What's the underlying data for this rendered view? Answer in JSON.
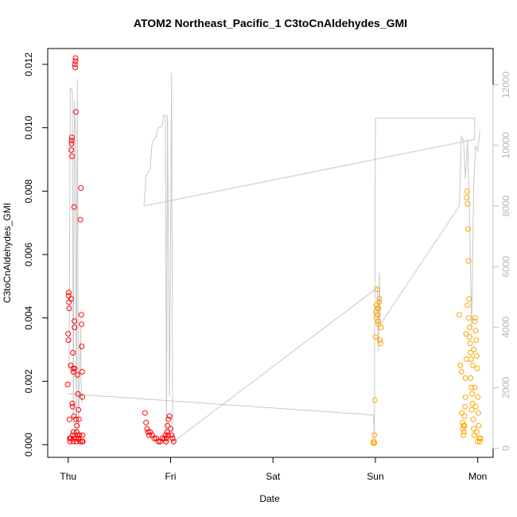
{
  "chart_data": {
    "type": "scatter",
    "title": "ATOM2 Northeast_Pacific_1 C3toCnAldehydes_GMI",
    "xlabel": "Date",
    "ylabel": "C3toCnAldehydes_GMI",
    "x_ticks": [
      "Thu",
      "Fri",
      "Sat",
      "Sun",
      "Mon"
    ],
    "x_range_days": [
      -0.2,
      4.15
    ],
    "y_ticks": [
      "0.000",
      "0.002",
      "0.004",
      "0.006",
      "0.008",
      "0.010",
      "0.012"
    ],
    "ylim": [
      -0.0004,
      0.0125
    ],
    "y2_ticks": [
      "0",
      "2000",
      "4000",
      "6000",
      "8000",
      "10000",
      "12000"
    ],
    "y2lim": [
      -300,
      13200
    ],
    "y2_color": "#bebebe",
    "grid": false,
    "legend": "none",
    "series": [
      {
        "color": "#ff0000",
        "points": [
          [
            -0.005,
            0.0019
          ],
          [
            0.0,
            0.0035
          ],
          [
            0.002,
            0.0033
          ],
          [
            0.004,
            0.0047
          ],
          [
            0.006,
            0.0048
          ],
          [
            0.008,
            0.0045
          ],
          [
            0.01,
            0.0043
          ],
          [
            0.012,
            0.0008
          ],
          [
            0.015,
            0.0002
          ],
          [
            0.018,
            0.0001
          ],
          [
            0.025,
            0.0025
          ],
          [
            0.028,
            0.0046
          ],
          [
            0.03,
            0.0093
          ],
          [
            0.032,
            0.0095
          ],
          [
            0.034,
            0.0096
          ],
          [
            0.036,
            0.0097
          ],
          [
            0.038,
            0.0091
          ],
          [
            0.04,
            0.0013
          ],
          [
            0.042,
            0.0012
          ],
          [
            0.044,
            0.0003
          ],
          [
            0.046,
            0.0029
          ],
          [
            0.048,
            0.0024
          ],
          [
            0.05,
            0.0023
          ],
          [
            0.052,
            0.0004
          ],
          [
            0.054,
            0.0002
          ],
          [
            0.056,
            0.0009
          ],
          [
            0.058,
            0.0075
          ],
          [
            0.06,
            0.0039
          ],
          [
            0.062,
            0.0037
          ],
          [
            0.064,
            0.0024
          ],
          [
            0.066,
            0.012
          ],
          [
            0.068,
            0.0119
          ],
          [
            0.07,
            0.0121
          ],
          [
            0.072,
            0.0122
          ],
          [
            0.074,
            0.0105
          ],
          [
            0.076,
            0.0008
          ],
          [
            0.078,
            0.0002
          ],
          [
            0.08,
            0.0001
          ],
          [
            0.082,
            0.0004
          ],
          [
            0.084,
            0.0006
          ],
          [
            0.09,
            0.0022
          ],
          [
            0.095,
            0.0016
          ],
          [
            0.1,
            0.0011
          ],
          [
            0.105,
            0.0008
          ],
          [
            0.11,
            0.0003
          ],
          [
            0.115,
            0.0001
          ],
          [
            0.12,
            0.0071
          ],
          [
            0.125,
            0.0081
          ],
          [
            0.128,
            0.0041
          ],
          [
            0.13,
            0.0038
          ],
          [
            0.132,
            0.0031
          ],
          [
            0.135,
            0.0023
          ],
          [
            0.138,
            0.0015
          ],
          [
            0.14,
            0.0003
          ],
          [
            0.142,
            0.0001
          ],
          [
            0.025,
            0.0002
          ],
          [
            0.05,
            0.0001
          ],
          [
            0.1,
            0.0002
          ],
          [
            0.135,
            0.0001
          ],
          [
            0.09,
            0.0003
          ],
          [
            0.75,
            0.001
          ],
          [
            0.76,
            0.0007
          ],
          [
            0.77,
            0.0005
          ],
          [
            0.78,
            0.0004
          ],
          [
            0.79,
            0.0003
          ],
          [
            0.8,
            0.0004
          ],
          [
            0.82,
            0.0003
          ],
          [
            0.84,
            0.0002
          ],
          [
            0.86,
            0.0002
          ],
          [
            0.88,
            0.0001
          ],
          [
            0.9,
            0.0001
          ],
          [
            0.92,
            0.0002
          ],
          [
            0.94,
            0.0002
          ],
          [
            0.95,
            0.0003
          ],
          [
            0.96,
            0.0002
          ],
          [
            0.97,
            0.0006
          ],
          [
            0.98,
            0.0008
          ],
          [
            0.99,
            0.0009
          ],
          [
            1.0,
            0.0005
          ],
          [
            1.01,
            0.0003
          ],
          [
            1.02,
            0.0002
          ],
          [
            1.03,
            0.0001
          ],
          [
            0.955,
            0.0001
          ],
          [
            0.965,
            0.0004
          ],
          [
            0.975,
            0.0003
          ]
        ]
      },
      {
        "color": "#ffa500",
        "points": [
          [
            2.98,
            5e-05
          ],
          [
            2.985,
            0.0001
          ],
          [
            2.99,
            0.0003
          ],
          [
            2.995,
            0.0014
          ],
          [
            3.0,
            0.0034
          ],
          [
            3.005,
            0.0042
          ],
          [
            3.01,
            0.0044
          ],
          [
            3.015,
            0.0049
          ],
          [
            3.02,
            0.0041
          ],
          [
            3.025,
            0.0039
          ],
          [
            3.03,
            0.0043
          ],
          [
            3.035,
            0.0045
          ],
          [
            3.04,
            0.0046
          ],
          [
            3.045,
            0.0033
          ],
          [
            3.05,
            0.0032
          ],
          [
            3.055,
            0.0037
          ],
          [
            3.01,
            0.004
          ],
          [
            3.02,
            0.0043
          ],
          [
            3.03,
            0.0038
          ],
          [
            2.99,
            5e-05
          ],
          [
            3.82,
            0.0041
          ],
          [
            3.83,
            0.0025
          ],
          [
            3.84,
            0.0023
          ],
          [
            3.845,
            0.001
          ],
          [
            3.85,
            0.0007
          ],
          [
            3.855,
            0.0005
          ],
          [
            3.86,
            0.0003
          ],
          [
            3.865,
            0.0004
          ],
          [
            3.87,
            0.0006
          ],
          [
            3.875,
            0.0012
          ],
          [
            3.88,
            0.0021
          ],
          [
            3.885,
            0.0035
          ],
          [
            3.89,
            0.0078
          ],
          [
            3.895,
            0.008
          ],
          [
            3.9,
            0.0076
          ],
          [
            3.905,
            0.0068
          ],
          [
            3.91,
            0.0058
          ],
          [
            3.915,
            0.0046
          ],
          [
            3.92,
            0.0037
          ],
          [
            3.925,
            0.0032
          ],
          [
            3.93,
            0.0029
          ],
          [
            3.935,
            0.0027
          ],
          [
            3.94,
            0.0018
          ],
          [
            3.945,
            0.0016
          ],
          [
            3.95,
            0.0013
          ],
          [
            3.955,
            0.0008
          ],
          [
            3.96,
            0.0005
          ],
          [
            3.965,
            0.0003
          ],
          [
            3.97,
            0.0039
          ],
          [
            3.975,
            0.004
          ],
          [
            3.98,
            0.0036
          ],
          [
            3.985,
            0.0033
          ],
          [
            3.99,
            0.0028
          ],
          [
            3.995,
            0.0024
          ],
          [
            4.0,
            0.0015
          ],
          [
            4.005,
            0.001
          ],
          [
            4.01,
            0.0006
          ],
          [
            4.015,
            0.0002
          ],
          [
            4.02,
            0.0001
          ],
          [
            4.025,
            0.0002
          ],
          [
            3.9,
            0.0044
          ],
          [
            3.91,
            0.004
          ],
          [
            3.92,
            0.0034
          ],
          [
            3.93,
            0.0021
          ],
          [
            3.95,
            0.0025
          ],
          [
            3.96,
            0.003
          ],
          [
            3.97,
            0.0018
          ],
          [
            3.98,
            0.0012
          ],
          [
            3.99,
            0.0004
          ],
          [
            4.0,
            0.0001
          ],
          [
            3.86,
            0.0006
          ],
          [
            3.87,
            0.0009
          ],
          [
            3.88,
            0.0015
          ],
          [
            3.89,
            0.0027
          ],
          [
            3.94,
            0.0011
          ]
        ]
      }
    ],
    "line": {
      "color": "#c8c8c8",
      "axis": "right",
      "points": [
        [
          0.0,
          2600
        ],
        [
          0.01,
          2700
        ],
        [
          0.02,
          11900
        ],
        [
          0.04,
          11800
        ],
        [
          0.05,
          800
        ],
        [
          0.06,
          11500
        ],
        [
          0.07,
          10500
        ],
        [
          0.08,
          300
        ],
        [
          0.09,
          12200
        ],
        [
          0.1,
          500
        ],
        [
          0.12,
          4000
        ],
        [
          0.13,
          1500
        ],
        [
          0.14,
          1800
        ],
        [
          0.0,
          1800
        ],
        [
          2.98,
          1100
        ],
        [
          2.99,
          300
        ],
        [
          3.0,
          10900
        ],
        [
          3.97,
          10900
        ],
        [
          3.97,
          10200
        ],
        [
          0.74,
          8000
        ],
        [
          0.76,
          9000
        ],
        [
          0.8,
          9200
        ],
        [
          0.82,
          10100
        ],
        [
          0.86,
          10300
        ],
        [
          0.88,
          10600
        ],
        [
          0.9,
          10600
        ],
        [
          0.92,
          10700
        ],
        [
          0.93,
          11000
        ],
        [
          0.95,
          11000
        ],
        [
          0.96,
          100
        ],
        [
          0.97,
          11000
        ],
        [
          0.99,
          1700
        ],
        [
          1.01,
          12400
        ],
        [
          1.02,
          200
        ],
        [
          3.02,
          5300
        ],
        [
          3.03,
          3200
        ],
        [
          3.04,
          5800
        ],
        [
          3.05,
          4100
        ],
        [
          3.82,
          8000
        ],
        [
          3.84,
          10300
        ],
        [
          3.86,
          10200
        ],
        [
          3.88,
          8900
        ],
        [
          3.9,
          10200
        ],
        [
          3.92,
          7500
        ],
        [
          3.94,
          3900
        ],
        [
          3.96,
          8700
        ],
        [
          3.98,
          10000
        ],
        [
          4.0,
          9800
        ],
        [
          4.02,
          10500
        ]
      ]
    }
  }
}
